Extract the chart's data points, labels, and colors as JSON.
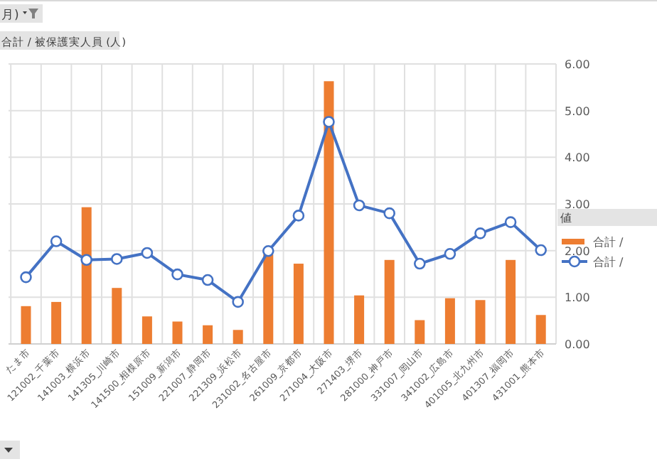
{
  "chart_data": {
    "type": "bar",
    "annotations": [
      "月)",
      "合計 / 被保護実人員 (人)"
    ],
    "legend_title": "値",
    "categories": [
      "たま市",
      "121002_千葉市",
      "141003_横浜市",
      "141305_川崎市",
      "141500_相模原市",
      "151009_新潟市",
      "221007_静岡市",
      "221309_浜松市",
      "231002_名古屋市",
      "261009_京都市",
      "271004_大阪市",
      "271403_堺市",
      "281000_神戸市",
      "331007_岡山市",
      "341002_広島市",
      "401005_北九州市",
      "401307_福岡市",
      "431001_熊本市"
    ],
    "series": [
      {
        "name": "合計 /",
        "color": "#ed7d31",
        "values": [
          0.81,
          0.9,
          2.93,
          1.2,
          0.59,
          0.48,
          0.4,
          0.3,
          1.92,
          1.72,
          5.63,
          1.04,
          1.8,
          0.51,
          0.98,
          0.94,
          1.8,
          0.62
        ]
      },
      {
        "name": "合計 /",
        "type": "line",
        "color": "#4472c4",
        "values": [
          1.43,
          2.2,
          1.8,
          1.82,
          1.95,
          1.49,
          1.37,
          0.9,
          1.99,
          2.75,
          4.76,
          2.97,
          2.8,
          1.72,
          1.93,
          2.37,
          2.61,
          2.01
        ]
      }
    ],
    "ylim": [
      0,
      6
    ],
    "yticks": [
      {
        "value": 0,
        "label": "0.00"
      },
      {
        "value": 1,
        "label": "1.00"
      },
      {
        "value": 2,
        "label": "2.00"
      },
      {
        "value": 3,
        "label": "3.00"
      },
      {
        "value": 4,
        "label": "4.00"
      },
      {
        "value": 5,
        "label": "5.00"
      },
      {
        "value": 6,
        "label": "6.00"
      }
    ],
    "grid": true,
    "legend": "right",
    "marker": "circle"
  }
}
